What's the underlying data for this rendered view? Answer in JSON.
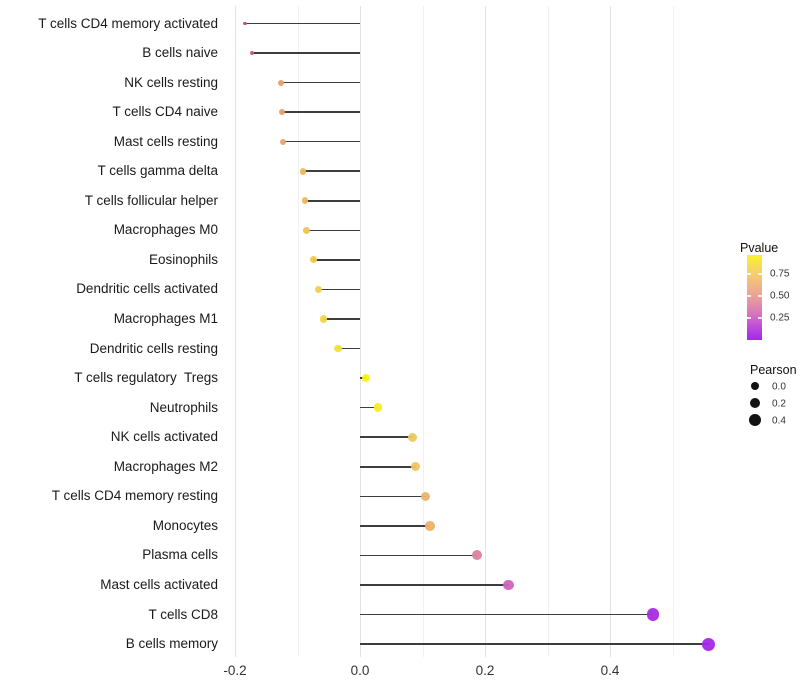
{
  "figure": {
    "background": "#ffffff"
  },
  "chart_data": {
    "type": "lollipop",
    "orientation": "horizontal",
    "title": "",
    "xlabel": "",
    "ylabel": "",
    "xlim": [
      -0.2208,
      0.5792
    ],
    "x_major_ticks": [
      -0.2,
      0.0,
      0.2,
      0.4
    ],
    "x_tick_labels": [
      "-0.2",
      "0.0",
      "0.2",
      "0.4"
    ],
    "x_minor_gridlines": [
      -0.1,
      0.1,
      0.3,
      0.5
    ],
    "grid": "vertical light-gray gridlines only, white background, no axis lines",
    "baseline_x": 0.0,
    "stem_color": "#3d3d3d",
    "rows": [
      {
        "label": "T cells CD4 memory activated",
        "pearson": -0.184,
        "dot_color": "#bb5470"
      },
      {
        "label": "B cells naive",
        "pearson": -0.173,
        "dot_color": "#c55e7d"
      },
      {
        "label": "NK cells resting",
        "pearson": -0.126,
        "dot_color": "#e99e6c"
      },
      {
        "label": "T cells CD4 naive",
        "pearson": -0.125,
        "dot_color": "#e99d6b"
      },
      {
        "label": "Mast cells resting",
        "pearson": -0.123,
        "dot_color": "#e9a170"
      },
      {
        "label": "T cells gamma delta",
        "pearson": -0.091,
        "dot_color": "#edb95e"
      },
      {
        "label": "T cells follicular helper",
        "pearson": -0.088,
        "dot_color": "#edba5c"
      },
      {
        "label": "Macrophages M0",
        "pearson": -0.085,
        "dot_color": "#efc355"
      },
      {
        "label": "Eosinophils",
        "pearson": -0.075,
        "dot_color": "#eec84f"
      },
      {
        "label": "Dendritic cells activated",
        "pearson": -0.066,
        "dot_color": "#f0d04a"
      },
      {
        "label": "Macrophages M1",
        "pearson": -0.059,
        "dot_color": "#f0d647"
      },
      {
        "label": "Dendritic cells resting",
        "pearson": -0.035,
        "dot_color": "#f2e03c"
      },
      {
        "label": "T cells regulatory  Tregs",
        "pearson": 0.01,
        "dot_color": "#f6f215"
      },
      {
        "label": "Neutrophils",
        "pearson": 0.029,
        "dot_color": "#f5ee25"
      },
      {
        "label": "NK cells activated",
        "pearson": 0.084,
        "dot_color": "#eec85b"
      },
      {
        "label": "Macrophages M2",
        "pearson": 0.089,
        "dot_color": "#edc562"
      },
      {
        "label": "T cells CD4 memory resting",
        "pearson": 0.105,
        "dot_color": "#eab46c"
      },
      {
        "label": "Monocytes",
        "pearson": 0.112,
        "dot_color": "#eab369"
      },
      {
        "label": "Plasma cells",
        "pearson": 0.187,
        "dot_color": "#dd7f9e"
      },
      {
        "label": "Mast cells activated",
        "pearson": 0.238,
        "dot_color": "#cf63bd"
      },
      {
        "label": "T cells CD8",
        "pearson": 0.469,
        "dot_color": "#a82ae4"
      },
      {
        "label": "B cells memory",
        "pearson": 0.558,
        "dot_color": "#a527e8"
      }
    ],
    "legend_position": "right"
  },
  "legend_pvalue": {
    "title": "Pvalue",
    "tick_labels": [
      "0.75",
      "0.50",
      "0.25"
    ],
    "gradient_top_color": "#FAF229",
    "gradient_bottom_color": "#A228EE"
  },
  "legend_pearson": {
    "title": "Pearson",
    "items": [
      {
        "label": "0.0",
        "pearson": 0.0
      },
      {
        "label": "0.2",
        "pearson": 0.2
      },
      {
        "label": "0.4",
        "pearson": 0.4
      }
    ],
    "dot_color": "#111111"
  }
}
